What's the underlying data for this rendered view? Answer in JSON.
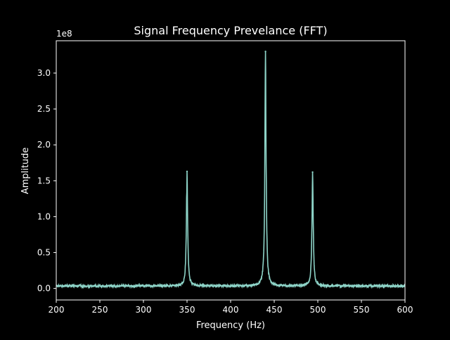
{
  "chart_data": {
    "type": "line",
    "title": "Signal Frequency Prevelance (FFT)",
    "xlabel": "Frequency (Hz)",
    "ylabel": "Amplitude",
    "y_offset_label": "1e8",
    "xlim": [
      200,
      600
    ],
    "ylim": [
      -0.16,
      3.45
    ],
    "x_ticks": [
      200,
      250,
      300,
      350,
      400,
      450,
      500,
      550,
      600
    ],
    "x_tick_labels": [
      "200",
      "250",
      "300",
      "350",
      "400",
      "450",
      "500",
      "550",
      "600"
    ],
    "y_ticks": [
      0.0,
      0.5,
      1.0,
      1.5,
      2.0,
      2.5,
      3.0
    ],
    "y_tick_labels": [
      "0.0",
      "0.5",
      "1.0",
      "1.5",
      "2.0",
      "2.5",
      "3.0"
    ],
    "y_unit_multiplier": 100000000,
    "grid": false,
    "colors": {
      "background": "#000000",
      "axes": "#ffffff",
      "line": "#8dd3c7"
    },
    "baseline_level": 0.02,
    "peaks": [
      {
        "x": 350,
        "y": 1.63
      },
      {
        "x": 440,
        "y": 3.3
      },
      {
        "x": 494,
        "y": 1.62
      }
    ]
  }
}
